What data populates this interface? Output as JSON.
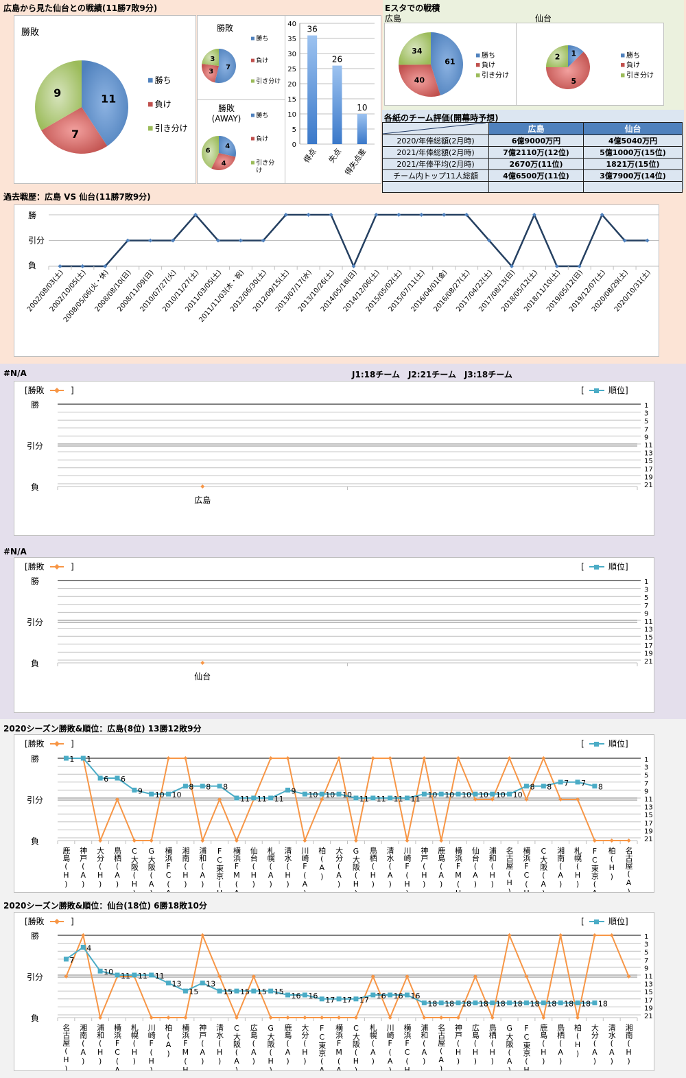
{
  "colors": {
    "win": "#4f81bd",
    "loss": "#c0504d",
    "draw": "#9bbb59",
    "result_line": "#f79646",
    "rank_line": "#4bacc6",
    "history_line": "#254061",
    "bar": "#4f81bd"
  },
  "summary": {
    "title": "広島から見た仙台との戦績(11勝7敗9分)",
    "legend": [
      "勝ち",
      "負け",
      "引き分け"
    ]
  },
  "estadium": {
    "title": "Eスタでの戦積",
    "team1": "広島",
    "team2": "仙台"
  },
  "evaluation": {
    "title": "各紙のチーム評価(開幕時予想)",
    "columns": [
      "",
      "広島",
      "仙台"
    ],
    "rows": [
      {
        "label": "2020/年俸総額(2月時)",
        "hiroshima": "6億9000万円",
        "sendai": "4億5040万円"
      },
      {
        "label": "2021/年俸総額(2月時)",
        "hiroshima": "7億2110万(12位)",
        "sendai": "5億1000万(15位)"
      },
      {
        "label": "2021/年俸平均(2月時)",
        "hiroshima": "2670万(11位)",
        "sendai": "1821万(15位)"
      },
      {
        "label": "チーム内トップ11人総額",
        "hiroshima": "4億6500万(11位)",
        "sendai": "3億7900万(14位)"
      },
      {
        "label": "",
        "hiroshima": "",
        "sendai": ""
      }
    ]
  },
  "history": {
    "title": "過去戦歴：広島 VS 仙台(11勝7敗9分)"
  },
  "na_section": {
    "title1": "#N/A",
    "title2": "#N/A",
    "league_info": "J1:18チーム　J2:21チーム　J3:18チーム"
  },
  "season": {
    "hiroshima_title": "2020シーズン勝敗&順位：広島(8位) 13勝12敗9分",
    "sendai_title": "2020シーズン勝敗&順位：仙台(18位) 6勝18敗10分"
  },
  "chart_data": [
    {
      "type": "pie",
      "title": "勝敗",
      "labels": [
        "勝ち",
        "負け",
        "引き分け"
      ],
      "values": [
        11,
        7,
        9
      ]
    },
    {
      "type": "pie",
      "title": "勝敗",
      "labels": [
        "勝ち",
        "負け",
        "引き分け"
      ],
      "values": [
        7,
        3,
        3
      ]
    },
    {
      "type": "pie",
      "title": "勝敗",
      "subtitle": "(AWAY)",
      "labels": [
        "勝ち",
        "負け",
        "引き分け"
      ],
      "values": [
        4,
        4,
        6
      ]
    },
    {
      "type": "bar",
      "categories": [
        "得点",
        "失点",
        "得失点差"
      ],
      "values": [
        36,
        26,
        10
      ],
      "ylim": [
        0,
        40
      ],
      "yticks": [
        0,
        5,
        10,
        15,
        20,
        25,
        30,
        35,
        40
      ],
      "grid": true
    },
    {
      "type": "pie",
      "title": "広島",
      "labels": [
        "勝ち",
        "負け",
        "引き分け"
      ],
      "values": [
        61,
        40,
        34
      ]
    },
    {
      "type": "pie",
      "title": "仙台",
      "labels": [
        "勝ち",
        "負け",
        "引き分け"
      ],
      "values": [
        1,
        5,
        2
      ]
    },
    {
      "type": "line",
      "y_labels": [
        "勝",
        "引分",
        "負"
      ],
      "categories": [
        "2002/08/03(土)",
        "2002/10/05(土)",
        "2008/05/06(火・休)",
        "2008/08/10(日)",
        "2008/11/09(日)",
        "2010/07/27(火)",
        "2010/11/27(土)",
        "2011/03/05(土)",
        "2011/11/03(木・祝)",
        "2012/06/30(土)",
        "2012/09/15(土)",
        "2013/07/17(水)",
        "2013/10/26(土)",
        "2014/05/18(日)",
        "2014/12/06(土)",
        "2015/05/02(土)",
        "2015/07/11(土)",
        "2016/04/01(金)",
        "2016/08/27(土)",
        "2017/04/22(土)",
        "2017/08/13(日)",
        "2018/05/12(土)",
        "2018/11/10(土)",
        "2019/05/12(日)",
        "2019/12/07(土)",
        "2020/08/29(土)",
        "2020/10/31(土)"
      ],
      "values": [
        0,
        0,
        0,
        0.5,
        0.5,
        0.5,
        1,
        0.5,
        0.5,
        0.5,
        1,
        1,
        1,
        0,
        1,
        1,
        1,
        1,
        1,
        0.5,
        0,
        1,
        0,
        0,
        1,
        0.5,
        0.5
      ]
    },
    {
      "type": "line",
      "legend_result": "[勝敗",
      "legend_rank": "順位]",
      "y_labels": [
        "勝",
        "引分",
        "負"
      ],
      "rank_ticks": [
        1,
        3,
        5,
        7,
        9,
        11,
        13,
        15,
        17,
        19,
        21
      ],
      "categories": [
        "広島",
        ""
      ],
      "values": [
        0,
        null
      ],
      "ranks": []
    },
    {
      "type": "line",
      "legend_result": "[勝敗",
      "legend_rank": "順位]",
      "y_labels": [
        "勝",
        "引分",
        "負"
      ],
      "rank_ticks": [
        1,
        3,
        5,
        7,
        9,
        11,
        13,
        15,
        17,
        19,
        21
      ],
      "categories": [
        "仙台",
        ""
      ],
      "values": [
        0,
        null
      ],
      "ranks": []
    },
    {
      "type": "line",
      "legend_result": "[勝敗",
      "legend_rank": "順位]",
      "y_labels": [
        "勝",
        "引分",
        "負"
      ],
      "rank_ticks": [
        1,
        3,
        5,
        7,
        9,
        11,
        13,
        15,
        17,
        19,
        21
      ],
      "categories": [
        "鹿島(H)",
        "神戸(A)",
        "大分(H)",
        "鳥栖(A)",
        "C大阪(H)",
        "G大阪(A)",
        "横浜FC(A)",
        "湘南(H)",
        "浦和(A)",
        "FC東京(H)",
        "横浜FM(A)",
        "仙台(H)",
        "札幌(A)",
        "清水(H)",
        "川崎F(A)",
        "柏(A)",
        "大分(A)",
        "G大阪(H)",
        "鳥栖(H)",
        "清水(A)",
        "川崎F(H)",
        "神戸(H)",
        "鹿島(A)",
        "横浜FM(H)",
        "仙台(A)",
        "浦和(H)",
        "名古屋(H)",
        "横浜FC(H)",
        "C大阪(A)",
        "湘南(A)",
        "札幌(H)",
        "FC東京(A)",
        "柏(H)",
        "名古屋(A)"
      ],
      "values": [
        1,
        1,
        0,
        0.5,
        0,
        0,
        1,
        1,
        0,
        0.5,
        0,
        0.5,
        1,
        1,
        0,
        0.5,
        1,
        0,
        1,
        1,
        0,
        1,
        0,
        1,
        0.5,
        0.5,
        1,
        0.5,
        1,
        0.5,
        0.5,
        0,
        0,
        0
      ],
      "ranks": [
        1,
        1,
        6,
        6,
        9,
        10,
        10,
        8,
        8,
        8,
        11,
        11,
        11,
        9,
        10,
        10,
        10,
        11,
        11,
        11,
        11,
        10,
        10,
        10,
        10,
        10,
        10,
        8,
        8,
        7,
        7,
        8,
        null,
        null
      ]
    },
    {
      "type": "line",
      "legend_result": "[勝敗",
      "legend_rank": "順位]",
      "y_labels": [
        "勝",
        "引分",
        "負"
      ],
      "rank_ticks": [
        1,
        3,
        5,
        7,
        9,
        11,
        13,
        15,
        17,
        19,
        21
      ],
      "categories": [
        "名古屋(H)",
        "湘南(A)",
        "浦和(H)",
        "横浜FC(A)",
        "札幌(H)",
        "川崎F(H)",
        "柏(A)",
        "横浜FM(H)",
        "神戸(A)",
        "清水(H)",
        "C大阪(A)",
        "広島(A)",
        "G大阪(H)",
        "鹿島(A)",
        "大分(H)",
        "FC東京(A)",
        "横浜FM(A)",
        "C大阪(H)",
        "札幌(A)",
        "川崎F(A)",
        "横浜FC(H)",
        "浦和(A)",
        "名古屋(A)",
        "神戸(H)",
        "広島(H)",
        "鳥栖(H)",
        "G大阪(A)",
        "FC東京(H)",
        "鹿島(H)",
        "鳥栖(A)",
        "柏(H)",
        "大分(A)",
        "清水(A)",
        "湘南(H)"
      ],
      "values": [
        0.5,
        1,
        0,
        0.5,
        0.5,
        0,
        0,
        0,
        1,
        0.5,
        0,
        0.5,
        0,
        0,
        0,
        0,
        0,
        0,
        0.5,
        0,
        0.5,
        0,
        0,
        0,
        0.5,
        0,
        1,
        0.5,
        0,
        1,
        0,
        1,
        1,
        0.5
      ],
      "ranks": [
        7,
        4,
        10,
        11,
        11,
        11,
        13,
        15,
        13,
        15,
        15,
        15,
        15,
        16,
        16,
        17,
        17,
        17,
        16,
        16,
        16,
        18,
        18,
        18,
        18,
        18,
        18,
        18,
        18,
        18,
        18,
        18,
        null,
        null
      ]
    }
  ]
}
